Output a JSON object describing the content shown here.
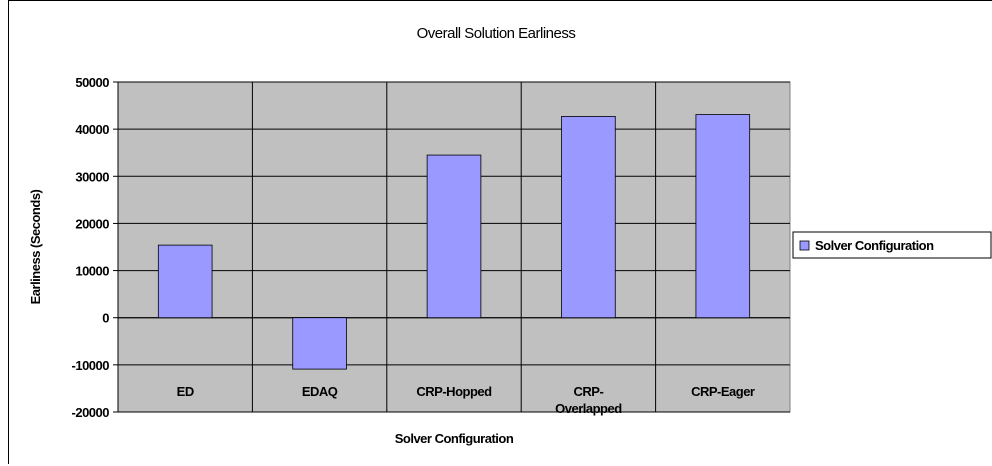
{
  "chart_data": {
    "type": "bar",
    "title": "Overall Solution Earliness",
    "x_label": "Solver Configuration",
    "y_label": "Earliness (Seconds)",
    "categories": [
      "ED",
      "EDAQ",
      "CRP-Hopped",
      "CRP-Overlapped",
      "CRP-Eager"
    ],
    "series": [
      {
        "name": "Solver Configuration",
        "color": "#9999ff",
        "values": [
          15400,
          -10900,
          34500,
          42700,
          43100
        ]
      }
    ],
    "ylim": [
      -20000,
      50000
    ],
    "yticks": [
      -20000,
      -10000,
      0,
      10000,
      20000,
      30000,
      40000,
      50000
    ],
    "grid": true,
    "legend": "right",
    "plot_background": "#c0c0c0"
  }
}
